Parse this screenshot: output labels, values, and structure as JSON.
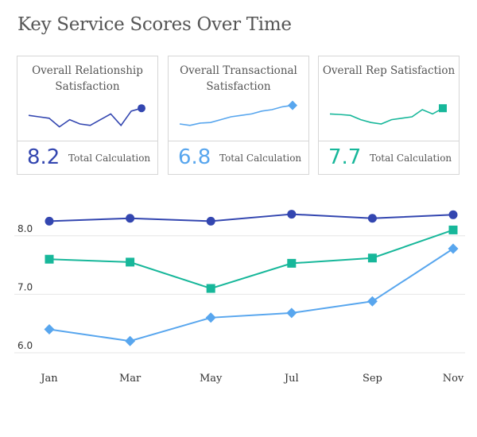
{
  "title": "Key Service Scores Over Time",
  "cards": [
    {
      "title": "Overall Relationship Satisfaction",
      "value": "8.2",
      "label": "Total Calculation",
      "color": "#3346b0",
      "marker": "circle",
      "spark": [
        0.55,
        0.5,
        0.45,
        0.15,
        0.4,
        0.25,
        0.2,
        0.4,
        0.6,
        0.2,
        0.7,
        0.8
      ]
    },
    {
      "title": "Overall Transactional Satisfaction",
      "value": "6.8",
      "label": "Total Calculation",
      "color": "#58a6ee",
      "marker": "diamond",
      "spark": [
        0.25,
        0.2,
        0.28,
        0.3,
        0.4,
        0.5,
        0.55,
        0.6,
        0.7,
        0.75,
        0.85,
        0.9
      ]
    },
    {
      "title": "Overall Rep Satisfaction",
      "value": "7.7",
      "label": "Total Calculation",
      "color": "#17b79a",
      "marker": "square",
      "spark": [
        0.6,
        0.58,
        0.55,
        0.4,
        0.3,
        0.25,
        0.4,
        0.45,
        0.5,
        0.75,
        0.6,
        0.8
      ]
    }
  ],
  "chart_data": {
    "type": "line",
    "categories": [
      "Jan",
      "Mar",
      "May",
      "Jul",
      "Sep",
      "Nov"
    ],
    "ylim": [
      5.85,
      8.5
    ],
    "yticks": [
      "6.0",
      "7.0",
      "8.0"
    ],
    "series": [
      {
        "values": [
          8.25,
          8.3,
          8.25,
          8.37,
          8.3,
          8.36
        ],
        "color": "#3346b0",
        "marker": "circle"
      },
      {
        "values": [
          7.6,
          7.55,
          7.1,
          7.53,
          7.62,
          8.1
        ],
        "color": "#17b79a",
        "marker": "square"
      },
      {
        "values": [
          6.4,
          6.2,
          6.6,
          6.68,
          6.88,
          7.78
        ],
        "color": "#58a6ee",
        "marker": "diamond"
      }
    ]
  }
}
